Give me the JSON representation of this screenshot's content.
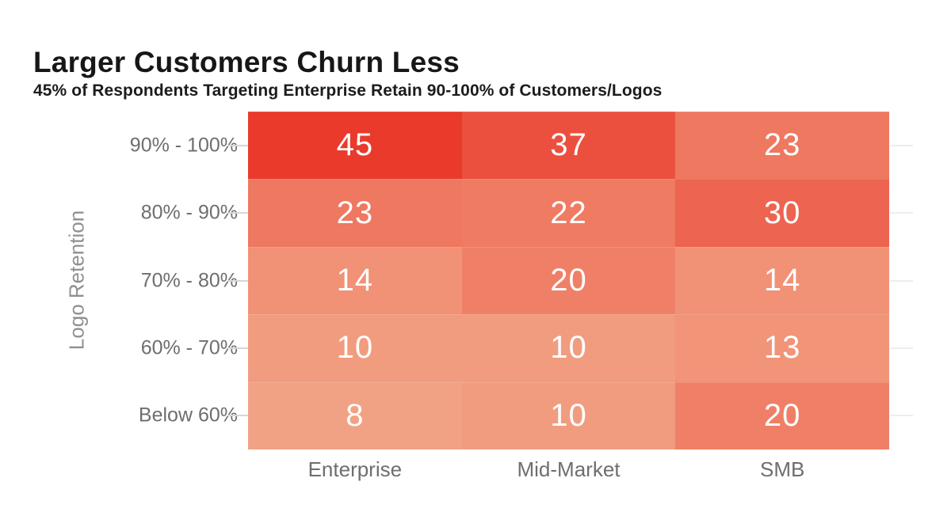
{
  "header": {
    "title": "Larger Customers Churn Less",
    "subtitle": "45% of Respondents Targeting Enterprise Retain 90-100% of Customers/Logos"
  },
  "chart_data": {
    "type": "heatmap",
    "title": "Larger Customers Churn Less",
    "subtitle": "45% of Respondents Targeting Enterprise Retain 90-100% of Customers/Logos",
    "xlabel": "",
    "ylabel": "Logo Retention",
    "columns": [
      "Enterprise",
      "Mid-Market",
      "SMB"
    ],
    "rows": [
      "90% - 100%",
      "80% - 90%",
      "70% - 80%",
      "60% - 70%",
      "Below 60%"
    ],
    "values": [
      [
        45,
        37,
        23
      ],
      [
        23,
        22,
        30
      ],
      [
        14,
        20,
        14
      ],
      [
        10,
        10,
        13
      ],
      [
        8,
        10,
        20
      ]
    ],
    "colormap": {
      "min_value": 8,
      "max_value": 45,
      "min_color": "#f2a284",
      "max_color": "#e93a2c"
    },
    "value_text_color": "#ffffff",
    "axis_text_color": "#6e6e6e",
    "legend": "none",
    "grid": "short row ticks on left and right of matrix"
  }
}
